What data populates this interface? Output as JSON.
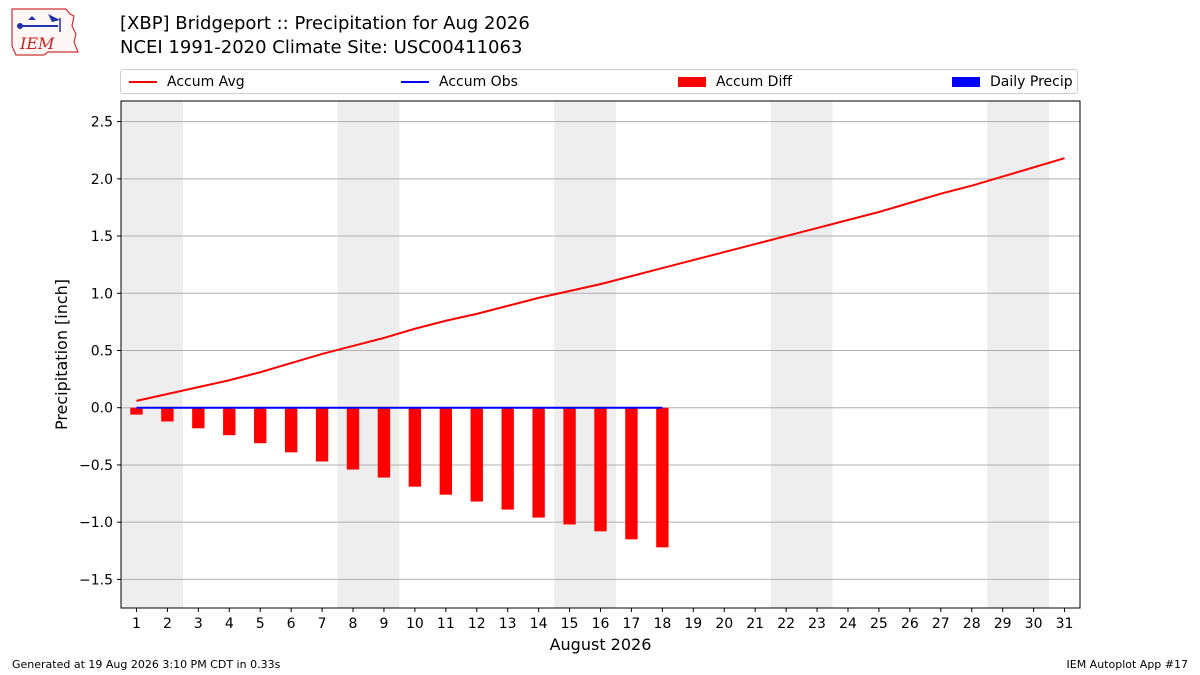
{
  "header": {
    "title": "[XBP] Bridgeport :: Precipitation for Aug 2026",
    "subtitle": "NCEI 1991-2020 Climate Site: USC00411063"
  },
  "logo": {
    "text": "IEM",
    "icon": "iem-logo-icon"
  },
  "legend": {
    "placement": "top",
    "items": [
      {
        "label": "Accum Avg",
        "kind": "line",
        "color": "#ff0000"
      },
      {
        "label": "Accum Obs",
        "kind": "line",
        "color": "#0000ff"
      },
      {
        "label": "Accum Diff",
        "kind": "bar",
        "color": "#ff0000"
      },
      {
        "label": "Daily Precip",
        "kind": "bar",
        "color": "#0000ff"
      }
    ]
  },
  "footer": {
    "left": "Generated at 19 Aug 2026 3:10 PM CDT in 0.33s",
    "right": "IEM Autoplot App #17"
  },
  "chart_data": {
    "type": "line",
    "xlabel": "August 2026",
    "ylabel": "Precipitation [inch]",
    "xlim": [
      0.5,
      31.5
    ],
    "ylim": [
      -1.75,
      2.68
    ],
    "yticks": [
      -1.5,
      -1.0,
      -0.5,
      0.0,
      0.5,
      1.0,
      1.5,
      2.0,
      2.5
    ],
    "ytick_labels": [
      "−1.5",
      "−1.0",
      "−0.5",
      "0.0",
      "0.5",
      "1.0",
      "1.5",
      "2.0",
      "2.5"
    ],
    "x": [
      1,
      2,
      3,
      4,
      5,
      6,
      7,
      8,
      9,
      10,
      11,
      12,
      13,
      14,
      15,
      16,
      17,
      18,
      19,
      20,
      21,
      22,
      23,
      24,
      25,
      26,
      27,
      28,
      29,
      30,
      31
    ],
    "xtick_labels": [
      "1",
      "2",
      "3",
      "4",
      "5",
      "6",
      "7",
      "8",
      "9",
      "10",
      "11",
      "12",
      "13",
      "14",
      "15",
      "16",
      "17",
      "18",
      "19",
      "20",
      "21",
      "22",
      "23",
      "24",
      "25",
      "26",
      "27",
      "28",
      "29",
      "30",
      "31"
    ],
    "grid": "y",
    "weekend_shading": [
      [
        0.5,
        2.5
      ],
      [
        7.5,
        9.5
      ],
      [
        14.5,
        16.5
      ],
      [
        21.5,
        23.5
      ],
      [
        28.5,
        30.5
      ]
    ],
    "shading_color": "#eeeeee",
    "series": [
      {
        "name": "Accum Avg",
        "type": "line",
        "color": "#ff0000",
        "x": [
          1,
          2,
          3,
          4,
          5,
          6,
          7,
          8,
          9,
          10,
          11,
          12,
          13,
          14,
          15,
          16,
          17,
          18,
          19,
          20,
          21,
          22,
          23,
          24,
          25,
          26,
          27,
          28,
          29,
          30,
          31
        ],
        "values": [
          0.06,
          0.12,
          0.18,
          0.24,
          0.31,
          0.39,
          0.47,
          0.54,
          0.61,
          0.69,
          0.76,
          0.82,
          0.89,
          0.96,
          1.02,
          1.08,
          1.15,
          1.22,
          1.29,
          1.36,
          1.43,
          1.5,
          1.57,
          1.64,
          1.71,
          1.79,
          1.87,
          1.94,
          2.02,
          2.1,
          2.18
        ]
      },
      {
        "name": "Accum Obs",
        "type": "line",
        "color": "#0000ff",
        "x": [
          1,
          2,
          3,
          4,
          5,
          6,
          7,
          8,
          9,
          10,
          11,
          12,
          13,
          14,
          15,
          16,
          17,
          18
        ],
        "values": [
          0,
          0,
          0,
          0,
          0,
          0,
          0,
          0,
          0,
          0,
          0,
          0,
          0,
          0,
          0,
          0,
          0,
          0
        ]
      },
      {
        "name": "Accum Diff",
        "type": "bar",
        "color": "#ff0000",
        "x": [
          1,
          2,
          3,
          4,
          5,
          6,
          7,
          8,
          9,
          10,
          11,
          12,
          13,
          14,
          15,
          16,
          17,
          18
        ],
        "values": [
          -0.06,
          -0.12,
          -0.18,
          -0.24,
          -0.31,
          -0.39,
          -0.47,
          -0.54,
          -0.61,
          -0.69,
          -0.76,
          -0.82,
          -0.89,
          -0.96,
          -1.02,
          -1.08,
          -1.15,
          -1.22
        ]
      },
      {
        "name": "Daily Precip",
        "type": "bar",
        "color": "#0000ff",
        "x": [
          1,
          2,
          3,
          4,
          5,
          6,
          7,
          8,
          9,
          10,
          11,
          12,
          13,
          14,
          15,
          16,
          17,
          18
        ],
        "values": [
          0,
          0,
          0,
          0,
          0,
          0,
          0,
          0,
          0,
          0,
          0,
          0,
          0,
          0,
          0,
          0,
          0,
          0
        ]
      }
    ]
  }
}
